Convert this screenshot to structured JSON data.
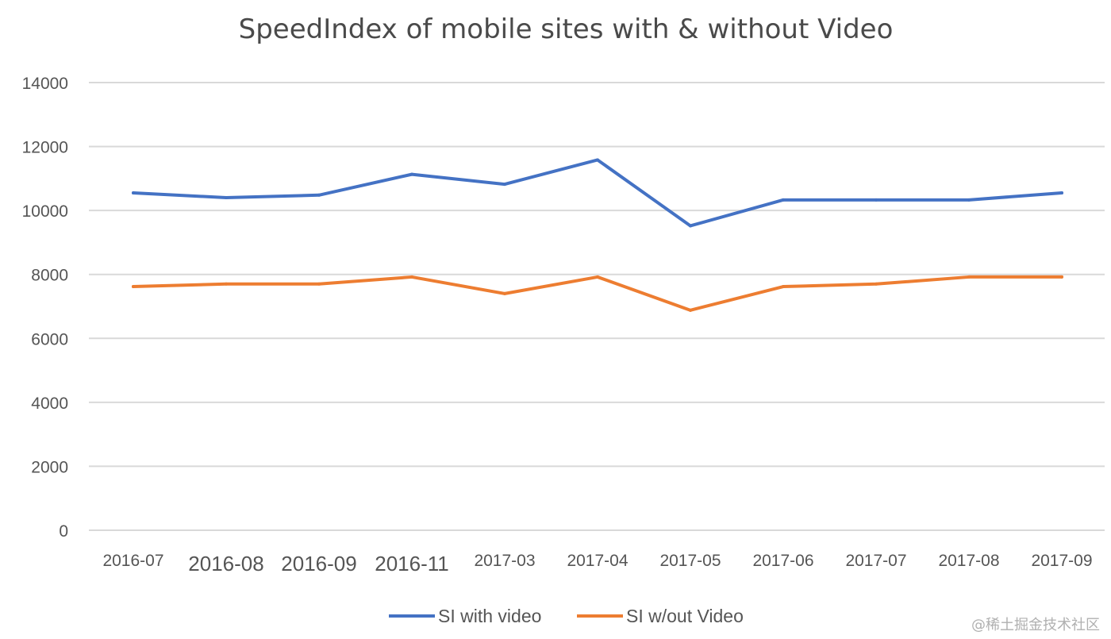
{
  "chart_data": {
    "type": "line",
    "title": "SpeedIndex of mobile sites with & without Video",
    "xlabel": "",
    "ylabel": "",
    "categories": [
      "2016-07",
      "2016-08",
      "2016-09",
      "2016-11",
      "2017-03",
      "2017-04",
      "2017-05",
      "2017-06",
      "2017-07",
      "2017-08",
      "2017-09"
    ],
    "ylim": [
      0,
      14000
    ],
    "yticks": [
      "0",
      "2000",
      "4000",
      "6000",
      "8000",
      "10000",
      "12000",
      "14000"
    ],
    "grid": true,
    "legend": "bottom",
    "series": [
      {
        "name": "SI with video",
        "color": "#4472c4",
        "values": [
          10550,
          10400,
          10480,
          11130,
          10820,
          11580,
          9520,
          10330,
          10330,
          10330,
          10550
        ]
      },
      {
        "name": "SI w/out Video",
        "color": "#ed7d31",
        "values": [
          7620,
          7700,
          7700,
          7920,
          7400,
          7920,
          6880,
          7620,
          7700,
          7920,
          7920
        ]
      }
    ]
  },
  "watermark": "@稀土掘金技术社区"
}
